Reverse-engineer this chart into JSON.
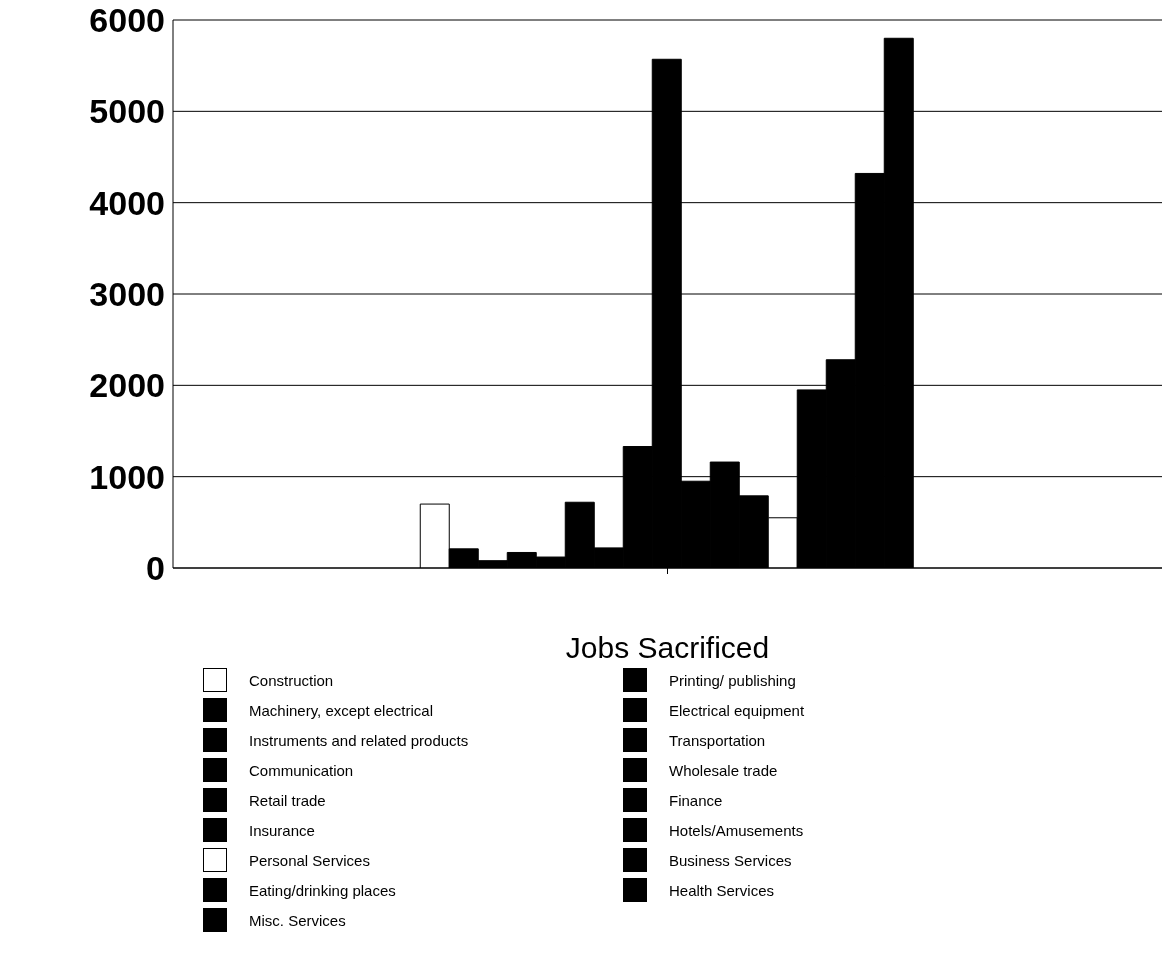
{
  "chart_data": {
    "type": "bar",
    "xlabel": "Jobs Sacrificed",
    "categories": [
      null
    ],
    "series": [
      {
        "name": "Construction",
        "color": "#ffffff",
        "values": [
          700
        ]
      },
      {
        "name": "Printing/ publishing",
        "color": "#000000",
        "values": [
          210
        ]
      },
      {
        "name": "Machinery, except electrical",
        "color": "#000000",
        "values": [
          80
        ]
      },
      {
        "name": "Electrical equipment",
        "color": "#000000",
        "values": [
          170
        ]
      },
      {
        "name": "Instruments and related products",
        "color": "#000000",
        "values": [
          120
        ]
      },
      {
        "name": "Transportation",
        "color": "#000000",
        "values": [
          720
        ]
      },
      {
        "name": "Communication",
        "color": "#000000",
        "values": [
          220
        ]
      },
      {
        "name": "Wholesale trade",
        "color": "#000000",
        "values": [
          1330
        ]
      },
      {
        "name": "Retail trade",
        "color": "#000000",
        "values": [
          5570
        ]
      },
      {
        "name": "Finance",
        "color": "#000000",
        "values": [
          950
        ]
      },
      {
        "name": "Insurance",
        "color": "#000000",
        "values": [
          1160
        ]
      },
      {
        "name": "Hotels/Amusements",
        "color": "#000000",
        "values": [
          790
        ]
      },
      {
        "name": "Personal Services",
        "color": "#ffffff",
        "values": [
          550
        ]
      },
      {
        "name": "Business Services",
        "color": "#000000",
        "values": [
          1950
        ]
      },
      {
        "name": "Eating/drinking places",
        "color": "#000000",
        "values": [
          2280
        ]
      },
      {
        "name": "Health Services",
        "color": "#000000",
        "values": [
          4320
        ]
      },
      {
        "name": "Misc. Services",
        "color": "#000000",
        "values": [
          5800
        ]
      }
    ],
    "ylim": [
      0,
      6000
    ],
    "yticks": [
      0,
      1000,
      2000,
      3000,
      4000,
      5000,
      6000
    ],
    "grid": "y",
    "legend": "bottom"
  }
}
